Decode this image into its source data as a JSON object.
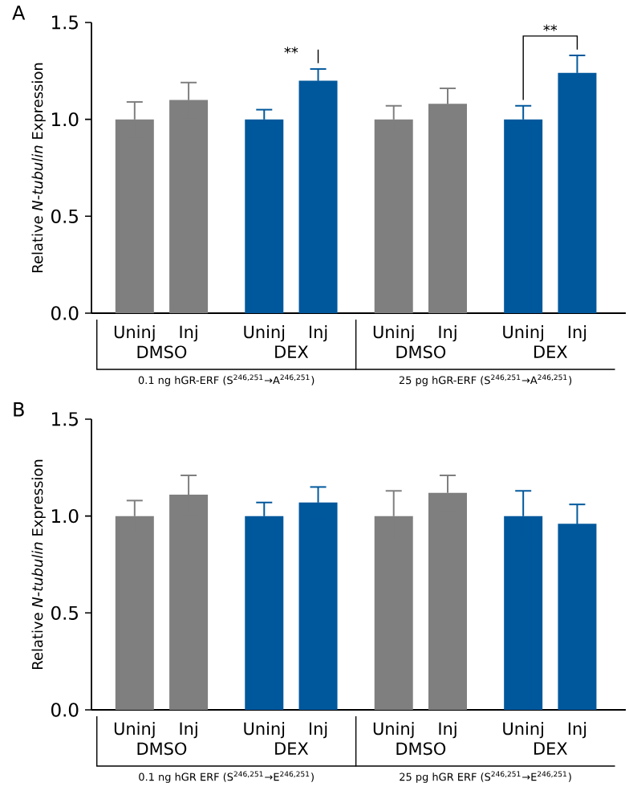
{
  "chart_data": [
    {
      "type": "bar",
      "title": "A",
      "ylabel": "Relative *N-tubulin* Expression",
      "categories": [
        "Uninj",
        "Inj",
        "Uninj",
        "Inj",
        "Uninj",
        "Inj",
        "Uninj",
        "Inj"
      ],
      "values": [
        1.0,
        1.1,
        1.0,
        1.2,
        1.0,
        1.08,
        1.0,
        1.24
      ],
      "errors": [
        0.09,
        0.09,
        0.05,
        0.06,
        0.07,
        0.08,
        0.07,
        0.09
      ],
      "colors": [
        "#7f7f7f",
        "#7f7f7f",
        "#00589c",
        "#00589c",
        "#7f7f7f",
        "#7f7f7f",
        "#00589c",
        "#00589c"
      ],
      "ylim": [
        0,
        1.5
      ],
      "yticks": [
        {
          "value": 0,
          "label": "0.0"
        },
        {
          "value": 0.5,
          "label": "0.5"
        },
        {
          "value": 1,
          "label": "1.0"
        },
        {
          "value": 1.5,
          "label": "1.5"
        }
      ],
      "annotations": [
        "DMSO",
        "DEX",
        "DMSO",
        "DEX",
        "0.1 ng hGR-ERF (S$^{246,251}$→A$^{246,251}$)",
        "25 pg hGR-ERF (S$^{246,251}$→A$^{246,251}$)",
        "**",
        "**"
      ]
    },
    {
      "type": "bar",
      "title": "B",
      "ylabel": "Relative *N-tubulin* Expression",
      "categories": [
        "Uninj",
        "Inj",
        "Uninj",
        "Inj",
        "Uninj",
        "Inj",
        "Uninj",
        "Inj"
      ],
      "values": [
        1.0,
        1.11,
        1.0,
        1.07,
        1.0,
        1.12,
        1.0,
        0.96
      ],
      "errors": [
        0.08,
        0.1,
        0.07,
        0.08,
        0.13,
        0.09,
        0.13,
        0.1
      ],
      "colors": [
        "#7f7f7f",
        "#7f7f7f",
        "#00589c",
        "#00589c",
        "#7f7f7f",
        "#7f7f7f",
        "#00589c",
        "#00589c"
      ],
      "ylim": [
        0,
        1.5
      ],
      "yticks": [
        {
          "value": 0,
          "label": "0.0"
        },
        {
          "value": 0.5,
          "label": "0.5"
        },
        {
          "value": 1,
          "label": "1.0"
        },
        {
          "value": 1.5,
          "label": "1.5"
        }
      ],
      "annotations": [
        "DMSO",
        "DEX",
        "DMSO",
        "DEX",
        "0.1 ng hGR ERF (S$^{246,251}$→E$^{246,251}$)",
        "25 pg hGR ERF (S$^{246,251}$→E$^{246,251}$)"
      ]
    }
  ]
}
